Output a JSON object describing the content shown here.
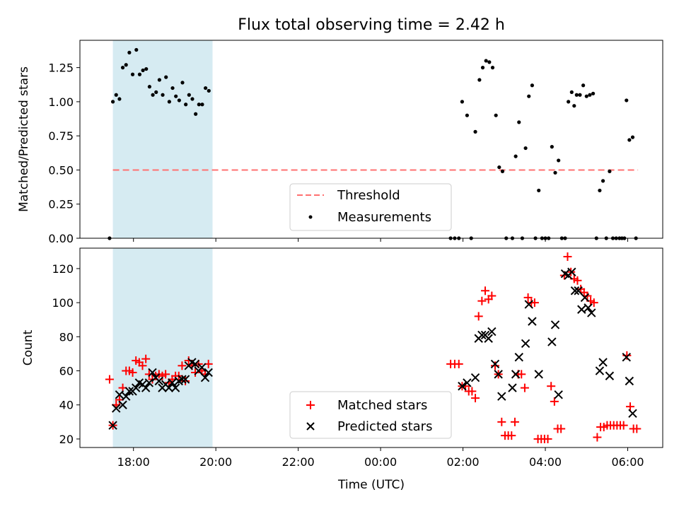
{
  "chart_data": [
    {
      "type": "scatter",
      "title": "Flux total observing time = 2.42 h",
      "xlabel": "",
      "ylabel": "Matched/Predicted stars",
      "ylim": [
        0,
        1.45
      ],
      "yticks": [
        "0.00",
        "0.25",
        "0.50",
        "0.75",
        "1.00",
        "1.25"
      ],
      "highlight_band_hours": [
        17.5,
        19.92
      ],
      "highlight_color": "#add8e6",
      "threshold": {
        "name": "Threshold",
        "value": 0.5,
        "x_range_hours": [
          17.5,
          30.25
        ],
        "color": "#ff7070"
      },
      "legend_position": "lower center",
      "series": [
        {
          "name": "Measurements",
          "color": "#000000",
          "marker": "dot",
          "points": [
            [
              17.42,
              0.0
            ],
            [
              17.5,
              1.0
            ],
            [
              17.58,
              1.05
            ],
            [
              17.66,
              1.02
            ],
            [
              17.74,
              1.25
            ],
            [
              17.82,
              1.27
            ],
            [
              17.9,
              1.36
            ],
            [
              17.98,
              1.2
            ],
            [
              18.07,
              1.38
            ],
            [
              18.15,
              1.2
            ],
            [
              18.23,
              1.23
            ],
            [
              18.31,
              1.24
            ],
            [
              18.39,
              1.11
            ],
            [
              18.47,
              1.05
            ],
            [
              18.55,
              1.07
            ],
            [
              18.63,
              1.16
            ],
            [
              18.71,
              1.05
            ],
            [
              18.79,
              1.18
            ],
            [
              18.87,
              1.0
            ],
            [
              18.95,
              1.1
            ],
            [
              19.03,
              1.04
            ],
            [
              19.11,
              1.01
            ],
            [
              19.19,
              1.14
            ],
            [
              19.27,
              0.98
            ],
            [
              19.35,
              1.05
            ],
            [
              19.43,
              1.02
            ],
            [
              19.51,
              0.91
            ],
            [
              19.59,
              0.98
            ],
            [
              19.67,
              0.98
            ],
            [
              19.75,
              1.1
            ],
            [
              19.83,
              1.08
            ],
            [
              25.7,
              0.0
            ],
            [
              25.8,
              0.0
            ],
            [
              25.9,
              0.0
            ],
            [
              25.98,
              1.0
            ],
            [
              26.1,
              0.9
            ],
            [
              26.2,
              0.0
            ],
            [
              26.3,
              0.78
            ],
            [
              26.4,
              1.16
            ],
            [
              26.48,
              1.25
            ],
            [
              26.56,
              1.3
            ],
            [
              26.64,
              1.29
            ],
            [
              26.72,
              1.25
            ],
            [
              26.8,
              0.9
            ],
            [
              26.88,
              0.52
            ],
            [
              26.96,
              0.49
            ],
            [
              27.05,
              0.0
            ],
            [
              27.2,
              0.0
            ],
            [
              27.28,
              0.6
            ],
            [
              27.36,
              0.85
            ],
            [
              27.44,
              0.0
            ],
            [
              27.52,
              0.66
            ],
            [
              27.6,
              1.04
            ],
            [
              27.68,
              1.12
            ],
            [
              27.76,
              0.0
            ],
            [
              27.84,
              0.35
            ],
            [
              27.92,
              0.0
            ],
            [
              28.0,
              0.0
            ],
            [
              28.08,
              0.0
            ],
            [
              28.16,
              0.67
            ],
            [
              28.24,
              0.48
            ],
            [
              28.32,
              0.57
            ],
            [
              28.4,
              0.0
            ],
            [
              28.48,
              0.0
            ],
            [
              28.56,
              1.0
            ],
            [
              28.64,
              1.07
            ],
            [
              28.7,
              0.97
            ],
            [
              28.76,
              1.05
            ],
            [
              28.84,
              1.05
            ],
            [
              28.92,
              1.12
            ],
            [
              29.0,
              1.04
            ],
            [
              29.08,
              1.05
            ],
            [
              29.16,
              1.06
            ],
            [
              29.24,
              0.0
            ],
            [
              29.32,
              0.35
            ],
            [
              29.4,
              0.42
            ],
            [
              29.48,
              0.0
            ],
            [
              29.56,
              0.49
            ],
            [
              29.64,
              0.0
            ],
            [
              29.72,
              0.0
            ],
            [
              29.8,
              0.0
            ],
            [
              29.86,
              0.0
            ],
            [
              29.92,
              0.0
            ],
            [
              29.97,
              1.01
            ],
            [
              30.04,
              0.72
            ],
            [
              30.12,
              0.74
            ],
            [
              30.2,
              0.0
            ]
          ]
        }
      ]
    },
    {
      "type": "scatter",
      "title": "",
      "xlabel": "Time (UTC)",
      "ylabel": "Count",
      "ylim": [
        15,
        132
      ],
      "yticks": [
        "20",
        "40",
        "60",
        "80",
        "100",
        "120"
      ],
      "xlim_hours": [
        16.7,
        30.85
      ],
      "xticks": [
        {
          "hour": 18,
          "label": "18:00"
        },
        {
          "hour": 20,
          "label": "20:00"
        },
        {
          "hour": 22,
          "label": "22:00"
        },
        {
          "hour": 24,
          "label": "00:00"
        },
        {
          "hour": 26,
          "label": "02:00"
        },
        {
          "hour": 28,
          "label": "04:00"
        },
        {
          "hour": 30,
          "label": "06:00"
        }
      ],
      "highlight_band_hours": [
        17.5,
        19.92
      ],
      "highlight_color": "#add8e6",
      "legend_position": "lower center",
      "series": [
        {
          "name": "Matched stars",
          "color": "#ff0000",
          "marker": "plus",
          "points": [
            [
              17.42,
              55
            ],
            [
              17.5,
              28
            ],
            [
              17.58,
              40
            ],
            [
              17.66,
              43
            ],
            [
              17.74,
              50
            ],
            [
              17.82,
              60
            ],
            [
              17.9,
              60
            ],
            [
              17.98,
              59
            ],
            [
              18.06,
              66
            ],
            [
              18.14,
              65
            ],
            [
              18.22,
              63
            ],
            [
              18.3,
              67
            ],
            [
              18.38,
              58
            ],
            [
              18.46,
              55
            ],
            [
              18.54,
              57
            ],
            [
              18.62,
              58
            ],
            [
              18.7,
              57
            ],
            [
              18.78,
              58
            ],
            [
              18.86,
              53
            ],
            [
              18.94,
              55
            ],
            [
              19.02,
              57
            ],
            [
              19.1,
              57
            ],
            [
              19.18,
              63
            ],
            [
              19.26,
              54
            ],
            [
              19.34,
              66
            ],
            [
              19.42,
              63
            ],
            [
              19.5,
              59
            ],
            [
              19.58,
              64
            ],
            [
              19.66,
              60
            ],
            [
              19.74,
              58
            ],
            [
              19.82,
              64
            ],
            [
              25.7,
              64
            ],
            [
              25.8,
              64
            ],
            [
              25.9,
              64
            ],
            [
              25.98,
              51
            ],
            [
              26.06,
              51
            ],
            [
              26.14,
              48
            ],
            [
              26.22,
              48
            ],
            [
              26.3,
              44
            ],
            [
              26.38,
              92
            ],
            [
              26.46,
              101
            ],
            [
              26.54,
              107
            ],
            [
              26.62,
              102
            ],
            [
              26.7,
              104
            ],
            [
              26.78,
              63
            ],
            [
              26.86,
              58
            ],
            [
              26.94,
              30
            ],
            [
              27.02,
              22
            ],
            [
              27.1,
              22
            ],
            [
              27.18,
              22
            ],
            [
              27.26,
              30
            ],
            [
              27.34,
              58
            ],
            [
              27.42,
              58
            ],
            [
              27.5,
              50
            ],
            [
              27.58,
              103
            ],
            [
              27.66,
              100
            ],
            [
              27.74,
              100
            ],
            [
              27.82,
              20
            ],
            [
              27.9,
              20
            ],
            [
              27.98,
              20
            ],
            [
              28.06,
              20
            ],
            [
              28.14,
              51
            ],
            [
              28.22,
              42
            ],
            [
              28.3,
              26
            ],
            [
              28.38,
              26
            ],
            [
              28.46,
              116
            ],
            [
              28.54,
              127
            ],
            [
              28.62,
              118
            ],
            [
              28.7,
              114
            ],
            [
              28.78,
              113
            ],
            [
              28.86,
              108
            ],
            [
              28.94,
              106
            ],
            [
              29.02,
              104
            ],
            [
              29.1,
              101
            ],
            [
              29.18,
              100
            ],
            [
              29.26,
              21
            ],
            [
              29.34,
              27
            ],
            [
              29.42,
              27
            ],
            [
              29.5,
              28
            ],
            [
              29.58,
              28
            ],
            [
              29.66,
              28
            ],
            [
              29.74,
              28
            ],
            [
              29.82,
              28
            ],
            [
              29.9,
              28
            ],
            [
              29.98,
              69
            ],
            [
              30.06,
              39
            ],
            [
              30.14,
              26
            ],
            [
              30.22,
              26
            ]
          ]
        },
        {
          "name": "Predicted stars",
          "color": "#000000",
          "marker": "x",
          "points": [
            [
              17.5,
              28
            ],
            [
              17.58,
              38
            ],
            [
              17.66,
              46
            ],
            [
              17.74,
              40
            ],
            [
              17.82,
              45
            ],
            [
              17.9,
              48
            ],
            [
              17.98,
              48
            ],
            [
              18.06,
              50
            ],
            [
              18.14,
              53
            ],
            [
              18.22,
              52
            ],
            [
              18.3,
              50
            ],
            [
              18.38,
              53
            ],
            [
              18.46,
              59
            ],
            [
              18.54,
              56
            ],
            [
              18.62,
              54
            ],
            [
              18.7,
              50
            ],
            [
              18.78,
              52
            ],
            [
              18.86,
              50
            ],
            [
              18.94,
              53
            ],
            [
              19.02,
              50
            ],
            [
              19.1,
              54
            ],
            [
              19.18,
              55
            ],
            [
              19.26,
              55
            ],
            [
              19.34,
              63
            ],
            [
              19.42,
              65
            ],
            [
              19.5,
              64
            ],
            [
              19.58,
              60
            ],
            [
              19.66,
              62
            ],
            [
              19.74,
              56
            ],
            [
              19.82,
              59
            ],
            [
              25.98,
              51
            ],
            [
              26.1,
              53
            ],
            [
              26.3,
              56
            ],
            [
              26.38,
              79
            ],
            [
              26.46,
              81
            ],
            [
              26.54,
              81
            ],
            [
              26.62,
              79
            ],
            [
              26.7,
              83
            ],
            [
              26.78,
              64
            ],
            [
              26.86,
              58
            ],
            [
              26.94,
              45
            ],
            [
              27.2,
              50
            ],
            [
              27.28,
              58
            ],
            [
              27.36,
              68
            ],
            [
              27.52,
              76
            ],
            [
              27.6,
              99
            ],
            [
              27.68,
              89
            ],
            [
              27.84,
              58
            ],
            [
              28.16,
              77
            ],
            [
              28.24,
              87
            ],
            [
              28.32,
              46
            ],
            [
              28.48,
              117
            ],
            [
              28.56,
              116
            ],
            [
              28.64,
              118
            ],
            [
              28.72,
              107
            ],
            [
              28.8,
              107
            ],
            [
              28.88,
              96
            ],
            [
              28.96,
              103
            ],
            [
              29.04,
              97
            ],
            [
              29.12,
              94
            ],
            [
              29.32,
              60
            ],
            [
              29.4,
              65
            ],
            [
              29.56,
              57
            ],
            [
              29.97,
              68
            ],
            [
              30.04,
              54
            ],
            [
              30.12,
              35
            ]
          ]
        }
      ]
    }
  ]
}
